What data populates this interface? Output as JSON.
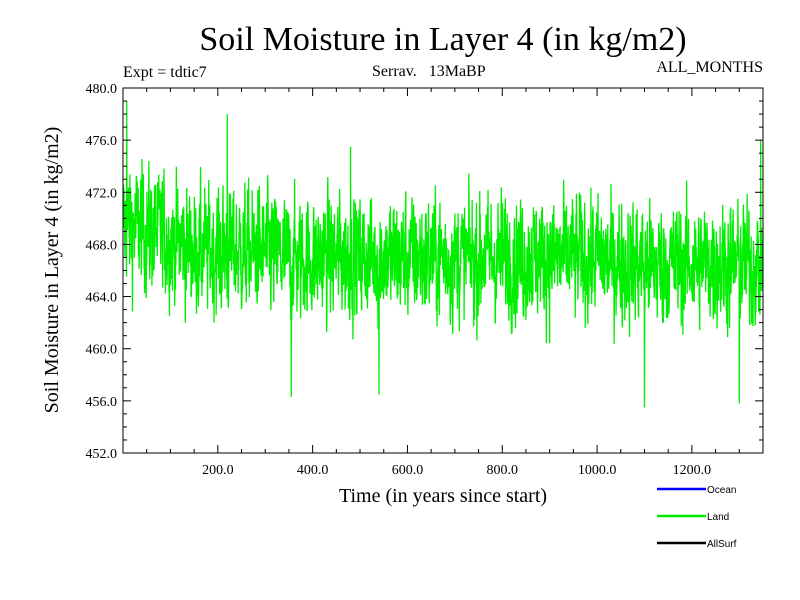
{
  "chart_data": {
    "type": "line",
    "title": "Soil Moisture in Layer 4 (in kg/m2)",
    "subtitle_left": "Expt = tdtic7",
    "subtitle_center": "Serrav.   13MaBP",
    "subtitle_right": "ALL_MONTHS",
    "xlabel": "Time (in years since start)",
    "ylabel": "Soil Moisture in Layer 4 (in kg/m2)",
    "xlim": [
      0,
      1350
    ],
    "ylim": [
      452,
      480
    ],
    "xticks": [
      200,
      400,
      600,
      800,
      1000,
      1200
    ],
    "xtick_labels": [
      "200.0",
      "400.0",
      "600.0",
      "800.0",
      "1000.0",
      "1200.0"
    ],
    "yticks": [
      452,
      456,
      460,
      464,
      468,
      472,
      476,
      480
    ],
    "ytick_labels": [
      "452.0",
      "456.0",
      "460.0",
      "464.0",
      "468.0",
      "472.0",
      "476.0",
      "480.0"
    ],
    "legend_position": "bottom-right",
    "series": [
      {
        "name": "Ocean",
        "color": "#0000ff",
        "values": []
      },
      {
        "name": "Land",
        "color": "#00ee00",
        "profile_x": [
          0,
          50,
          100,
          150,
          200,
          250,
          300,
          350,
          400,
          450,
          500,
          550,
          600,
          650,
          700,
          750,
          800,
          850,
          900,
          950,
          1000,
          1050,
          1100,
          1150,
          1200,
          1250,
          1300,
          1350
        ],
        "profile_mean": [
          469.5,
          469.2,
          468.5,
          467.5,
          467.5,
          467.5,
          467.5,
          466.8,
          467.0,
          467.0,
          467.0,
          467.0,
          467.0,
          467.0,
          467.0,
          467.0,
          467.0,
          467.0,
          467.0,
          467.0,
          467.0,
          466.5,
          466.5,
          466.5,
          466.5,
          466.5,
          466.5,
          466.5
        ],
        "amplitude": 4.0,
        "extremes": [
          {
            "x": 8,
            "y": 479.0
          },
          {
            "x": 220,
            "y": 478.0
          },
          {
            "x": 355,
            "y": 456.3
          },
          {
            "x": 1100,
            "y": 455.5
          },
          {
            "x": 1300,
            "y": 455.8
          },
          {
            "x": 1345,
            "y": 476.0
          },
          {
            "x": 480,
            "y": 475.5
          },
          {
            "x": 540,
            "y": 456.5
          }
        ]
      },
      {
        "name": "AllSurf",
        "color": "#000000",
        "values": []
      }
    ]
  }
}
